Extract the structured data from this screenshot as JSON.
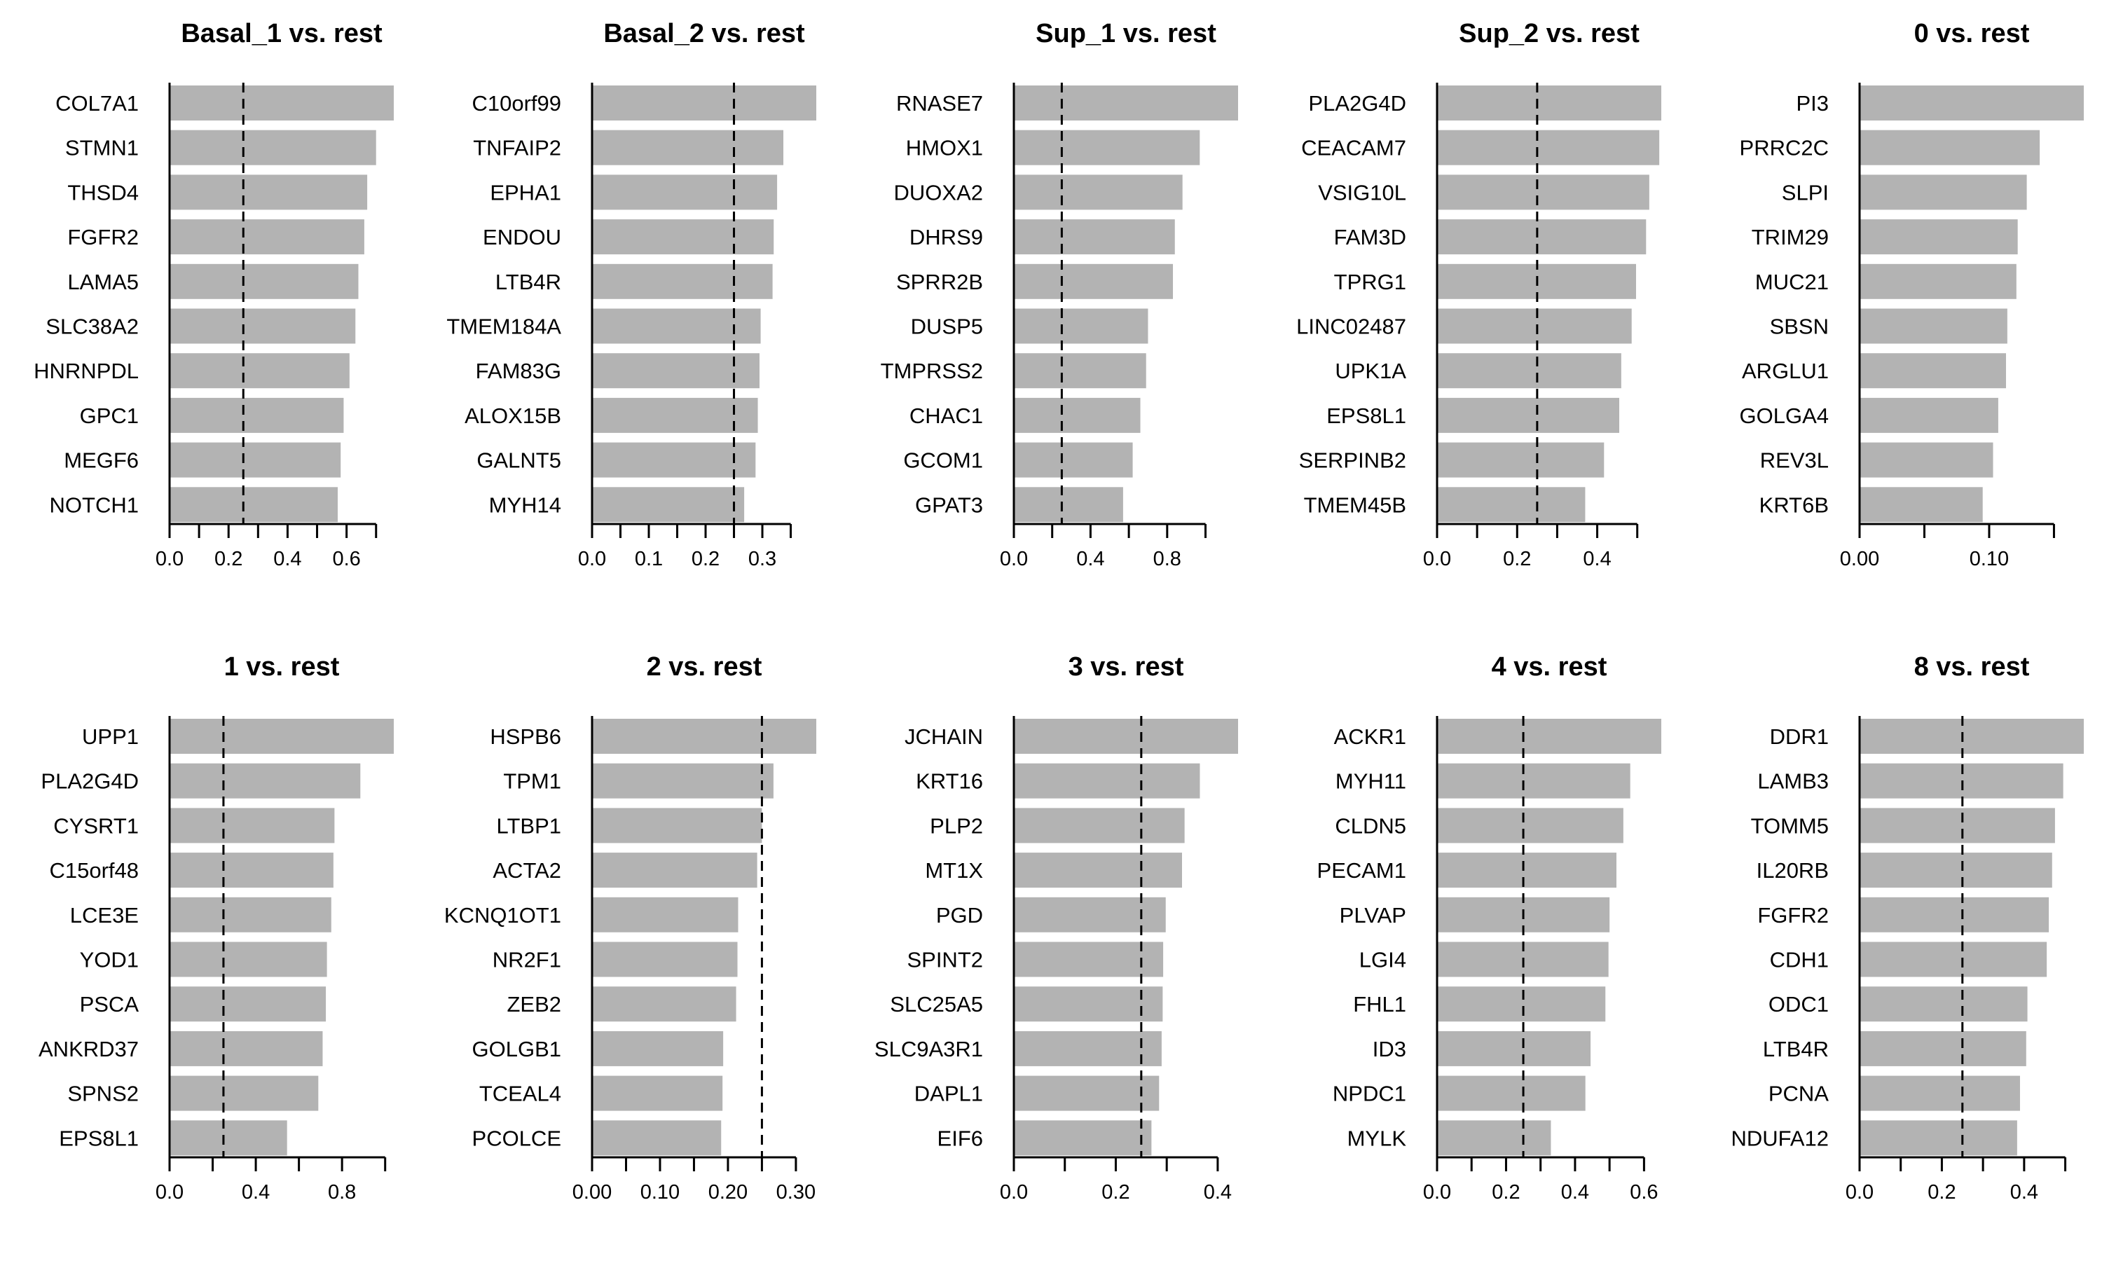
{
  "colors": {
    "bar": "#b3b3b3",
    "axis": "#000000",
    "threshold_line": "#000000"
  },
  "chart_data": [
    {
      "type": "bar",
      "orientation": "horizontal",
      "title": "Basal_1 vs. rest",
      "categories": [
        "COL7A1",
        "STMN1",
        "THSD4",
        "FGFR2",
        "LAMA5",
        "SLC38A2",
        "HNRNPDL",
        "GPC1",
        "MEGF6",
        "NOTCH1"
      ],
      "values": [
        0.76,
        0.7,
        0.67,
        0.66,
        0.64,
        0.63,
        0.61,
        0.59,
        0.58,
        0.57
      ],
      "threshold": 0.25,
      "xlim": [
        0,
        0.76
      ],
      "ticks": [
        0,
        0.1,
        0.2,
        0.3,
        0.4,
        0.5,
        0.6,
        0.7
      ],
      "tick_labels": [
        "0.0",
        "",
        "0.2",
        "",
        "0.4",
        "",
        "0.6",
        ""
      ]
    },
    {
      "type": "bar",
      "orientation": "horizontal",
      "title": "Basal_2 vs. rest",
      "categories": [
        "C10orf99",
        "TNFAIP2",
        "EPHA1",
        "ENDOU",
        "LTB4R",
        "TMEM184A",
        "FAM83G",
        "ALOX15B",
        "GALNT5",
        "MYH14"
      ],
      "values": [
        0.395,
        0.337,
        0.326,
        0.32,
        0.318,
        0.297,
        0.295,
        0.292,
        0.288,
        0.268
      ],
      "threshold": 0.25,
      "xlim": [
        0,
        0.395
      ],
      "ticks": [
        0,
        0.05,
        0.1,
        0.15,
        0.2,
        0.25,
        0.3,
        0.35
      ],
      "tick_labels": [
        "0.0",
        "",
        "0.1",
        "",
        "0.2",
        "",
        "0.3",
        ""
      ]
    },
    {
      "type": "bar",
      "orientation": "horizontal",
      "title": "Sup_1 vs. rest",
      "categories": [
        "RNASE7",
        "HMOX1",
        "DUOXA2",
        "DHRS9",
        "SPRR2B",
        "DUSP5",
        "TMPRSS2",
        "CHAC1",
        "GCOM1",
        "GPAT3"
      ],
      "values": [
        1.17,
        0.97,
        0.88,
        0.84,
        0.83,
        0.7,
        0.69,
        0.66,
        0.62,
        0.57
      ],
      "threshold": 0.25,
      "xlim": [
        0,
        1.17
      ],
      "ticks": [
        0,
        0.2,
        0.4,
        0.6,
        0.8,
        1.0
      ],
      "tick_labels": [
        "0.0",
        "",
        "0.4",
        "",
        "0.8",
        ""
      ]
    },
    {
      "type": "bar",
      "orientation": "horizontal",
      "title": "Sup_2 vs. rest",
      "categories": [
        "PLA2G4D",
        "CEACAM7",
        "VSIG10L",
        "FAM3D",
        "TPRG1",
        "LINC02487",
        "UPK1A",
        "EPS8L1",
        "SERPINB2",
        "TMEM45B"
      ],
      "values": [
        0.56,
        0.555,
        0.53,
        0.522,
        0.497,
        0.486,
        0.46,
        0.455,
        0.417,
        0.37
      ],
      "threshold": 0.25,
      "xlim": [
        0,
        0.56
      ],
      "ticks": [
        0,
        0.1,
        0.2,
        0.3,
        0.4,
        0.5
      ],
      "tick_labels": [
        "0.0",
        "",
        "0.2",
        "",
        "0.4",
        ""
      ]
    },
    {
      "type": "bar",
      "orientation": "horizontal",
      "title": "0 vs. rest",
      "categories": [
        "PI3",
        "PRRC2C",
        "SLPI",
        "TRIM29",
        "MUC21",
        "SBSN",
        "ARGLU1",
        "GOLGA4",
        "REV3L",
        "KRT6B"
      ],
      "values": [
        0.173,
        0.139,
        0.129,
        0.122,
        0.121,
        0.114,
        0.113,
        0.107,
        0.103,
        0.095
      ],
      "threshold": null,
      "xlim": [
        0,
        0.173
      ],
      "ticks": [
        0,
        0.05,
        0.1,
        0.15
      ],
      "tick_labels": [
        "0.00",
        "",
        "0.10",
        ""
      ]
    },
    {
      "type": "bar",
      "orientation": "horizontal",
      "title": "1 vs. rest",
      "categories": [
        "UPP1",
        "PLA2G4D",
        "CYSRT1",
        "C15orf48",
        "LCE3E",
        "YOD1",
        "PSCA",
        "ANKRD37",
        "SPNS2",
        "EPS8L1"
      ],
      "values": [
        1.04,
        0.885,
        0.765,
        0.76,
        0.75,
        0.73,
        0.725,
        0.71,
        0.69,
        0.545
      ],
      "threshold": 0.25,
      "xlim": [
        0,
        1.04
      ],
      "ticks": [
        0,
        0.2,
        0.4,
        0.6,
        0.8,
        1.0
      ],
      "tick_labels": [
        "0.0",
        "",
        "0.4",
        "",
        "0.8",
        ""
      ]
    },
    {
      "type": "bar",
      "orientation": "horizontal",
      "title": "2 vs. rest",
      "categories": [
        "HSPB6",
        "TPM1",
        "LTBP1",
        "ACTA2",
        "KCNQ1OT1",
        "NR2F1",
        "ZEB2",
        "GOLGB1",
        "TCEAL4",
        "PCOLCE"
      ],
      "values": [
        0.33,
        0.267,
        0.25,
        0.243,
        0.215,
        0.214,
        0.212,
        0.193,
        0.192,
        0.19
      ],
      "threshold": 0.25,
      "xlim": [
        0,
        0.33
      ],
      "ticks": [
        0,
        0.05,
        0.1,
        0.15,
        0.2,
        0.25,
        0.3
      ],
      "tick_labels": [
        "0.00",
        "",
        "0.10",
        "",
        "0.20",
        "",
        "0.30"
      ]
    },
    {
      "type": "bar",
      "orientation": "horizontal",
      "title": "3 vs. rest",
      "categories": [
        "JCHAIN",
        "KRT16",
        "PLP2",
        "MT1X",
        "PGD",
        "SPINT2",
        "SLC25A5",
        "SLC9A3R1",
        "DAPL1",
        "EIF6"
      ],
      "values": [
        0.44,
        0.365,
        0.335,
        0.33,
        0.298,
        0.293,
        0.292,
        0.29,
        0.285,
        0.27
      ],
      "threshold": 0.25,
      "xlim": [
        0,
        0.44
      ],
      "ticks": [
        0,
        0.1,
        0.2,
        0.3,
        0.4
      ],
      "tick_labels": [
        "0.0",
        "",
        "0.2",
        "",
        "0.4"
      ]
    },
    {
      "type": "bar",
      "orientation": "horizontal",
      "title": "4 vs. rest",
      "categories": [
        "ACKR1",
        "MYH11",
        "CLDN5",
        "PECAM1",
        "PLVAP",
        "LGI4",
        "FHL1",
        "ID3",
        "NPDC1",
        "MYLK"
      ],
      "values": [
        0.65,
        0.56,
        0.54,
        0.52,
        0.5,
        0.497,
        0.488,
        0.445,
        0.43,
        0.33
      ],
      "threshold": 0.25,
      "xlim": [
        0,
        0.65
      ],
      "ticks": [
        0,
        0.1,
        0.2,
        0.3,
        0.4,
        0.5,
        0.6
      ],
      "tick_labels": [
        "0.0",
        "",
        "0.2",
        "",
        "0.4",
        "",
        "0.6"
      ]
    },
    {
      "type": "bar",
      "orientation": "horizontal",
      "title": "8 vs. rest",
      "categories": [
        "DDR1",
        "LAMB3",
        "TOMM5",
        "IL20RB",
        "FGFR2",
        "CDH1",
        "ODC1",
        "LTB4R",
        "PCNA",
        "NDUFA12"
      ],
      "values": [
        0.545,
        0.495,
        0.475,
        0.468,
        0.46,
        0.455,
        0.408,
        0.405,
        0.39,
        0.383
      ],
      "threshold": 0.25,
      "xlim": [
        0,
        0.545
      ],
      "ticks": [
        0,
        0.1,
        0.2,
        0.3,
        0.4,
        0.5
      ],
      "tick_labels": [
        "0.0",
        "",
        "0.2",
        "",
        "0.4",
        ""
      ]
    }
  ]
}
